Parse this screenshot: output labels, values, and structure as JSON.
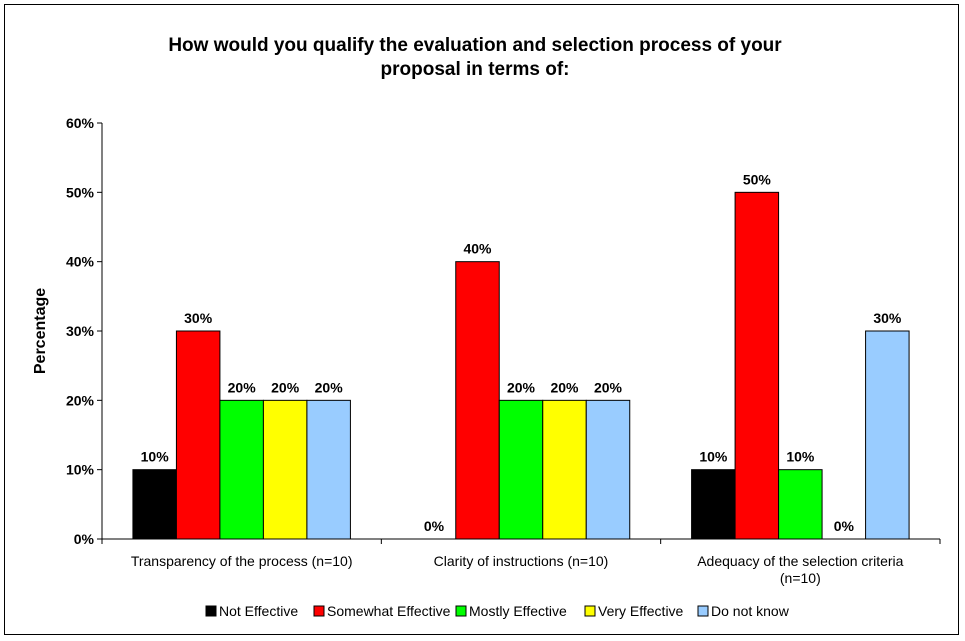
{
  "chart_data": {
    "type": "bar",
    "title": "How would you qualify the evaluation and selection process of your proposal in terms of:",
    "title_lines": [
      "How would you qualify the evaluation and selection process of your",
      "proposal in terms of:"
    ],
    "ylabel": "Percentage",
    "xlabel": "",
    "ylim": [
      0,
      60
    ],
    "ytick_step": 10,
    "value_suffix": "%",
    "grid": false,
    "legend_position": "bottom",
    "categories": [
      [
        "Transparency of the process  (n=10)"
      ],
      [
        "Clarity of instructions  (n=10)"
      ],
      [
        "Adequacy of the selection criteria",
        "(n=10)"
      ]
    ],
    "series": [
      {
        "name": "Not Effective",
        "color": "#000000",
        "values": [
          10,
          0,
          10
        ]
      },
      {
        "name": "Somewhat Effective",
        "color": "#ff0000",
        "values": [
          30,
          40,
          50
        ]
      },
      {
        "name": "Mostly Effective",
        "color": "#00ff00",
        "values": [
          20,
          20,
          10
        ]
      },
      {
        "name": "Very Effective",
        "color": "#ffff00",
        "values": [
          20,
          20,
          0
        ]
      },
      {
        "name": "Do not know",
        "color": "#99ccff",
        "values": [
          20,
          20,
          30
        ]
      }
    ]
  }
}
